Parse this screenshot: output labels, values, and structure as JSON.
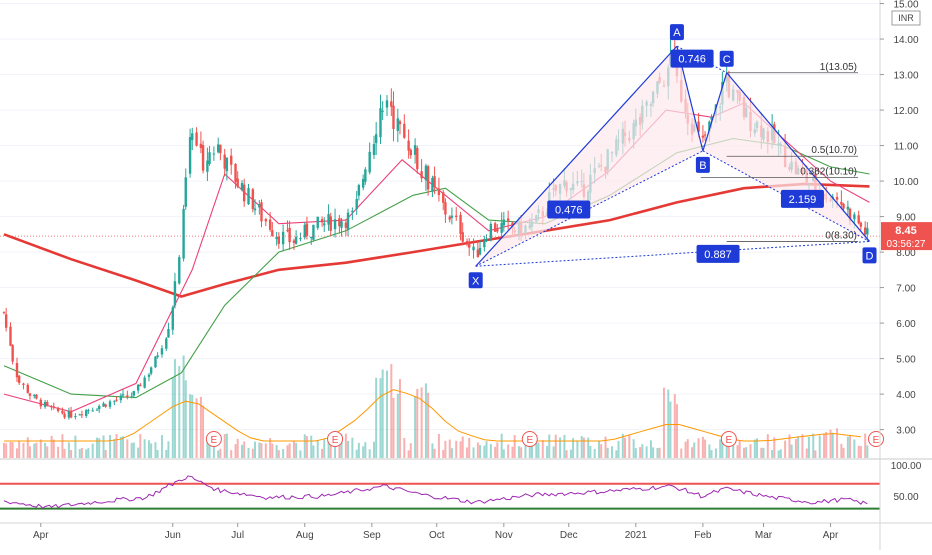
{
  "colors": {
    "up": "#26a69a",
    "down": "#ef5350",
    "ma200": "#e53935",
    "ma50": "#43a047",
    "ma20": "#ec407a",
    "pattern": "#1e3bd8",
    "pattern_fill": "#fce8ec",
    "rsi": "#9c27b0",
    "vol_ma": "#ff9800",
    "price_label_bg": "#ef5350",
    "last_line": "#ef5350"
  },
  "chart_data": [
    {
      "type": "candlestick",
      "title": "",
      "currency": "INR",
      "y_axis": {
        "ticks": [
          "3.00",
          "4.00",
          "5.00",
          "6.00",
          "7.00",
          "8.00",
          "9.00",
          "10.00",
          "11.00",
          "12.00",
          "13.00",
          "14.00",
          "15.00"
        ],
        "scale": "linear",
        "range": [
          2.2,
          15.1
        ]
      },
      "x_axis": {
        "ticks": [
          "Apr",
          "Jun",
          "Jul",
          "Aug",
          "Sep",
          "Oct",
          "Nov",
          "Dec",
          "2021",
          "Feb",
          "Mar",
          "Apr"
        ],
        "range": [
          "2020-03-15",
          "2021-04-22"
        ]
      },
      "last_price": "8.45",
      "countdown": "03:56:27",
      "price_path": [
        [
          "2020-03-15",
          6.3
        ],
        [
          "2020-03-22",
          4.4
        ],
        [
          "2020-03-29",
          3.9
        ],
        [
          "2020-04-05",
          3.6
        ],
        [
          "2020-04-15",
          3.4
        ],
        [
          "2020-04-25",
          3.6
        ],
        [
          "2020-05-05",
          3.8
        ],
        [
          "2020-05-15",
          4.0
        ],
        [
          "2020-05-25",
          5.0
        ],
        [
          "2020-05-31",
          6.0
        ],
        [
          "2020-06-04",
          7.5
        ],
        [
          "2020-06-07",
          9.5
        ],
        [
          "2020-06-10",
          11.5
        ],
        [
          "2020-06-15",
          10.5
        ],
        [
          "2020-06-22",
          11.0
        ],
        [
          "2020-06-29",
          10.2
        ],
        [
          "2020-07-06",
          9.6
        ],
        [
          "2020-07-13",
          9.0
        ],
        [
          "2020-07-20",
          8.5
        ],
        [
          "2020-07-27",
          8.3
        ],
        [
          "2020-08-03",
          8.6
        ],
        [
          "2020-08-10",
          8.8
        ],
        [
          "2020-08-17",
          8.9
        ],
        [
          "2020-08-24",
          9.0
        ],
        [
          "2020-08-31",
          10.8
        ],
        [
          "2020-09-07",
          12.3
        ],
        [
          "2020-09-14",
          11.5
        ],
        [
          "2020-09-21",
          10.8
        ],
        [
          "2020-09-28",
          10.0
        ],
        [
          "2020-10-05",
          9.2
        ],
        [
          "2020-10-12",
          8.7
        ],
        [
          "2020-10-19",
          7.9
        ],
        [
          "2020-10-26",
          8.7
        ],
        [
          "2020-11-02",
          8.7
        ],
        [
          "2020-11-09",
          8.6
        ],
        [
          "2020-11-16",
          8.8
        ],
        [
          "2020-11-23",
          9.5
        ],
        [
          "2020-11-30",
          10.0
        ],
        [
          "2020-12-07",
          9.7
        ],
        [
          "2020-12-14",
          10.2
        ],
        [
          "2020-12-21",
          10.7
        ],
        [
          "2020-12-28",
          11.3
        ],
        [
          "2021-01-04",
          11.7
        ],
        [
          "2021-01-11",
          12.5
        ],
        [
          "2021-01-18",
          13.4
        ],
        [
          "2021-01-25",
          12.0
        ],
        [
          "2021-02-01",
          11.0
        ],
        [
          "2021-02-08",
          12.0
        ],
        [
          "2021-02-12",
          13.0
        ],
        [
          "2021-02-15",
          12.4
        ],
        [
          "2021-02-22",
          11.8
        ],
        [
          "2021-03-01",
          11.5
        ],
        [
          "2021-03-08",
          11.0
        ],
        [
          "2021-03-15",
          10.4
        ],
        [
          "2021-03-22",
          10.0
        ],
        [
          "2021-03-29",
          9.7
        ],
        [
          "2021-04-05",
          9.5
        ],
        [
          "2021-04-12",
          9.0
        ],
        [
          "2021-04-19",
          8.45
        ]
      ],
      "moving_averages": [
        {
          "period": 200,
          "points": [
            [
              "2020-03-15",
              8.5
            ],
            [
              "2020-04-15",
              7.8
            ],
            [
              "2020-05-15",
              7.2
            ],
            [
              "2020-06-05",
              6.75
            ],
            [
              "2020-06-25",
              7.1
            ],
            [
              "2020-07-20",
              7.5
            ],
            [
              "2020-08-20",
              7.7
            ],
            [
              "2020-09-20",
              8.0
            ],
            [
              "2020-10-20",
              8.3
            ],
            [
              "2020-11-20",
              8.6
            ],
            [
              "2020-12-20",
              8.9
            ],
            [
              "2021-01-20",
              9.4
            ],
            [
              "2021-02-20",
              9.8
            ],
            [
              "2021-03-20",
              9.92
            ],
            [
              "2021-04-19",
              9.85
            ]
          ]
        },
        {
          "period": 50,
          "points": [
            [
              "2020-03-15",
              4.8
            ],
            [
              "2020-04-15",
              4.0
            ],
            [
              "2020-05-15",
              3.9
            ],
            [
              "2020-06-05",
              4.6
            ],
            [
              "2020-06-25",
              6.5
            ],
            [
              "2020-07-20",
              8.0
            ],
            [
              "2020-08-20",
              8.6
            ],
            [
              "2020-09-20",
              9.6
            ],
            [
              "2020-10-05",
              9.8
            ],
            [
              "2020-10-25",
              8.9
            ],
            [
              "2020-11-20",
              8.8
            ],
            [
              "2020-12-20",
              9.6
            ],
            [
              "2021-01-20",
              10.8
            ],
            [
              "2021-02-15",
              11.2
            ],
            [
              "2021-03-10",
              11.0
            ],
            [
              "2021-04-01",
              10.4
            ],
            [
              "2021-04-19",
              10.2
            ]
          ]
        },
        {
          "period": 20,
          "points": [
            [
              "2020-03-15",
              4.0
            ],
            [
              "2020-04-15",
              3.5
            ],
            [
              "2020-05-15",
              4.3
            ],
            [
              "2020-06-10",
              7.5
            ],
            [
              "2020-06-25",
              10.2
            ],
            [
              "2020-07-20",
              8.8
            ],
            [
              "2020-08-20",
              8.9
            ],
            [
              "2020-09-15",
              10.6
            ],
            [
              "2020-10-05",
              9.6
            ],
            [
              "2020-10-25",
              8.6
            ],
            [
              "2020-11-20",
              9.0
            ],
            [
              "2020-12-20",
              10.3
            ],
            [
              "2021-01-15",
              12.0
            ],
            [
              "2021-02-05",
              11.8
            ],
            [
              "2021-02-20",
              12.2
            ],
            [
              "2021-03-10",
              11.2
            ],
            [
              "2021-04-01",
              10.0
            ],
            [
              "2021-04-19",
              9.4
            ]
          ]
        }
      ],
      "harmonic_pattern": {
        "points": [
          {
            "label": "X",
            "date": "2020-10-19",
            "price": 7.6
          },
          {
            "label": "A",
            "date": "2021-01-20",
            "price": 13.8
          },
          {
            "label": "B",
            "date": "2021-02-01",
            "price": 10.85
          },
          {
            "label": "C",
            "date": "2021-02-12",
            "price": 13.05
          },
          {
            "label": "D",
            "date": "2021-04-19",
            "price": 8.3
          }
        ],
        "ratios": [
          {
            "value": "0.746",
            "date": "2021-01-27",
            "price": 13.45
          },
          {
            "value": "0.476",
            "date": "2020-12-01",
            "price": 9.2
          },
          {
            "value": "2.159",
            "date": "2021-03-19",
            "price": 9.5
          },
          {
            "value": "0.887",
            "date": "2021-02-08",
            "price": 7.95
          }
        ]
      },
      "fib_levels": [
        {
          "label": "1(13.05)",
          "price": 13.05,
          "from": "2021-02-12"
        },
        {
          "label": "0.5(10.70)",
          "price": 10.7,
          "from": "2021-02-12"
        },
        {
          "label": "0.382(10.10)",
          "price": 10.1,
          "from": "2021-01-31"
        },
        {
          "label": "0(8.30)",
          "price": 8.3,
          "from": "2021-02-12"
        }
      ],
      "earnings_markers": [
        {
          "label": "E",
          "date": "2020-06-20"
        },
        {
          "label": "E",
          "date": "2020-08-15"
        },
        {
          "label": "E",
          "date": "2020-11-13"
        },
        {
          "label": "E",
          "date": "2021-02-13"
        },
        {
          "label": "E",
          "date": "2021-04-22"
        }
      ],
      "volume": {
        "spikes": [
          [
            "2020-06-05",
            1.0
          ],
          [
            "2020-06-12",
            0.7
          ],
          [
            "2020-09-07",
            0.9
          ],
          [
            "2020-09-12",
            0.8
          ],
          [
            "2020-09-25",
            0.75
          ],
          [
            "2021-01-18",
            0.7
          ],
          [
            "2021-04-01",
            0.3
          ]
        ],
        "base": 0.18
      }
    },
    {
      "type": "line",
      "title": "",
      "y_axis": {
        "ticks": [
          "50.00",
          "100.00"
        ],
        "range": [
          10,
          105
        ]
      },
      "reference_lines": [
        70,
        30
      ],
      "rsi_path": [
        [
          "2020-03-15",
          42
        ],
        [
          "2020-04-05",
          32
        ],
        [
          "2020-04-25",
          40
        ],
        [
          "2020-05-20",
          48
        ],
        [
          "2020-06-08",
          82
        ],
        [
          "2020-06-22",
          60
        ],
        [
          "2020-07-15",
          48
        ],
        [
          "2020-08-10",
          50
        ],
        [
          "2020-09-07",
          66
        ],
        [
          "2020-09-25",
          52
        ],
        [
          "2020-10-19",
          40
        ],
        [
          "2020-11-15",
          52
        ],
        [
          "2020-12-15",
          57
        ],
        [
          "2021-01-18",
          66
        ],
        [
          "2021-02-01",
          50
        ],
        [
          "2021-02-12",
          62
        ],
        [
          "2021-03-05",
          48
        ],
        [
          "2021-03-25",
          40
        ],
        [
          "2021-04-08",
          45
        ],
        [
          "2021-04-19",
          37
        ]
      ]
    }
  ]
}
